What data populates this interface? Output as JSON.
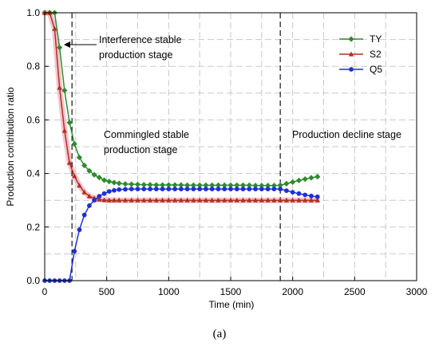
{
  "caption": "(a)",
  "colors": {
    "TY": "#2e8b2e",
    "S2": "#b03020",
    "Q5": "#1f2fd6",
    "S2_band": "#f4b8c4",
    "grid": "#c8c8c8"
  },
  "chart_data": {
    "type": "line",
    "xlabel": "Time (min)",
    "ylabel": "Production contribution ratio",
    "xlim": [
      0,
      3000
    ],
    "ylim": [
      0,
      1.0
    ],
    "xticks": [
      0,
      500,
      1000,
      1500,
      2000,
      2500,
      3000
    ],
    "yticks": [
      0.0,
      0.2,
      0.4,
      0.6,
      0.8,
      1.0
    ],
    "xtick_labels": [
      "0",
      "500",
      "1000",
      "1500",
      "2000",
      "2500",
      "3000"
    ],
    "ytick_labels": [
      "0.0",
      "0.2",
      "0.4",
      "0.6",
      "0.8",
      "1.0"
    ],
    "grid": true,
    "legend_position": "top-right",
    "stage_lines_x": [
      220,
      1900
    ],
    "annotations": [
      {
        "id": "interference",
        "lines": [
          "Interference stable",
          "production stage"
        ]
      },
      {
        "id": "commingled",
        "lines": [
          "Commingled stable",
          "production stage"
        ]
      },
      {
        "id": "decline",
        "lines": [
          "Production decline stage"
        ]
      }
    ],
    "x": [
      0,
      40,
      80,
      120,
      160,
      200,
      240,
      280,
      320,
      360,
      400,
      440,
      480,
      520,
      560,
      600,
      650,
      700,
      750,
      800,
      850,
      900,
      950,
      1000,
      1050,
      1100,
      1150,
      1200,
      1250,
      1300,
      1350,
      1400,
      1450,
      1500,
      1550,
      1600,
      1650,
      1700,
      1750,
      1800,
      1850,
      1900,
      1950,
      2000,
      2050,
      2100,
      2150,
      2200
    ],
    "series": [
      {
        "name": "TY",
        "marker": "diamond",
        "values": [
          1.0,
          1.0,
          1.0,
          0.87,
          0.71,
          0.59,
          0.51,
          0.46,
          0.43,
          0.41,
          0.395,
          0.385,
          0.375,
          0.37,
          0.366,
          0.363,
          0.361,
          0.36,
          0.359,
          0.358,
          0.358,
          0.357,
          0.357,
          0.357,
          0.357,
          0.357,
          0.356,
          0.356,
          0.356,
          0.356,
          0.356,
          0.356,
          0.356,
          0.356,
          0.356,
          0.356,
          0.356,
          0.355,
          0.355,
          0.355,
          0.355,
          0.356,
          0.362,
          0.368,
          0.374,
          0.379,
          0.384,
          0.388
        ]
      },
      {
        "name": "S2",
        "marker": "triangle",
        "values": [
          1.0,
          1.0,
          0.94,
          0.72,
          0.56,
          0.44,
          0.39,
          0.355,
          0.33,
          0.315,
          0.308,
          0.303,
          0.301,
          0.3,
          0.3,
          0.3,
          0.3,
          0.3,
          0.3,
          0.3,
          0.3,
          0.3,
          0.3,
          0.3,
          0.3,
          0.3,
          0.3,
          0.3,
          0.3,
          0.3,
          0.3,
          0.3,
          0.3,
          0.3,
          0.3,
          0.3,
          0.3,
          0.3,
          0.3,
          0.3,
          0.3,
          0.3,
          0.3,
          0.3,
          0.3,
          0.3,
          0.3,
          0.3
        ]
      },
      {
        "name": "Q5",
        "marker": "circle",
        "values": [
          0.0,
          0.0,
          0.0,
          0.0,
          0.0,
          0.0,
          0.11,
          0.19,
          0.245,
          0.28,
          0.3,
          0.315,
          0.325,
          0.333,
          0.337,
          0.34,
          0.341,
          0.342,
          0.342,
          0.342,
          0.342,
          0.342,
          0.342,
          0.342,
          0.342,
          0.342,
          0.342,
          0.342,
          0.342,
          0.342,
          0.342,
          0.342,
          0.342,
          0.342,
          0.342,
          0.342,
          0.342,
          0.342,
          0.342,
          0.342,
          0.342,
          0.342,
          0.336,
          0.33,
          0.325,
          0.32,
          0.316,
          0.313
        ]
      }
    ]
  }
}
